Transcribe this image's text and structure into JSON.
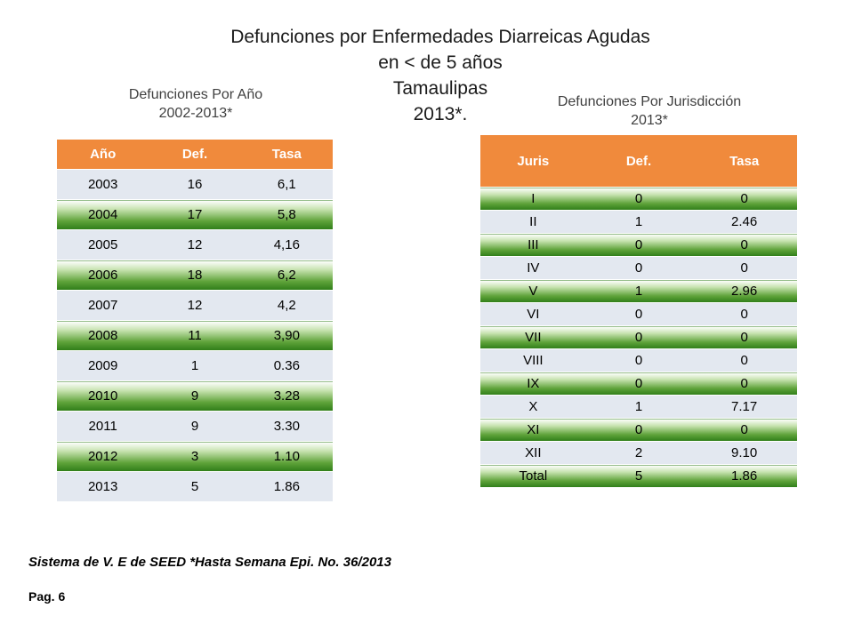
{
  "title_lines": [
    "Defunciones por Enfermedades Diarreicas Agudas",
    "en < de 5 años",
    "Tamaulipas",
    "2013*."
  ],
  "left_table": {
    "subtitle_lines": [
      "Defunciones  Por Año",
      "2002-2013*"
    ],
    "headers": [
      "Año",
      "Def.",
      "Tasa"
    ],
    "rows": [
      [
        "2003",
        "16",
        "6,1"
      ],
      [
        "2004",
        "17",
        "5,8"
      ],
      [
        "2005",
        "12",
        "4,16"
      ],
      [
        "2006",
        "18",
        "6,2"
      ],
      [
        "2007",
        "12",
        "4,2"
      ],
      [
        "2008",
        "11",
        "3,90"
      ],
      [
        "2009",
        "1",
        "0.36"
      ],
      [
        "2010",
        "9",
        "3.28"
      ],
      [
        "2011",
        "9",
        "3.30"
      ],
      [
        "2012",
        "3",
        "1.10"
      ],
      [
        "2013",
        "5",
        "1.86"
      ]
    ]
  },
  "right_table": {
    "subtitle_lines": [
      "Defunciones  Por Jurisdicción",
      "2013*"
    ],
    "headers": [
      "Juris",
      "Def.",
      "Tasa"
    ],
    "rows": [
      [
        "I",
        "0",
        "0"
      ],
      [
        "II",
        "1",
        "2.46"
      ],
      [
        "III",
        "0",
        "0"
      ],
      [
        "IV",
        "0",
        "0"
      ],
      [
        "V",
        "1",
        "2.96"
      ],
      [
        "VI",
        "0",
        "0"
      ],
      [
        "VII",
        "0",
        "0"
      ],
      [
        "VIII",
        "0",
        "0"
      ],
      [
        "IX",
        "0",
        "0"
      ],
      [
        "X",
        "1",
        "7.17"
      ],
      [
        "XI",
        "0",
        "0"
      ],
      [
        "XII",
        "2",
        "9.10"
      ],
      [
        "Total",
        "5",
        "1.86"
      ]
    ]
  },
  "footer": {
    "source": "Sistema de V. E de SEED  *Hasta Semana Epi. No.  36/2013",
    "page": "Pag. 6"
  }
}
